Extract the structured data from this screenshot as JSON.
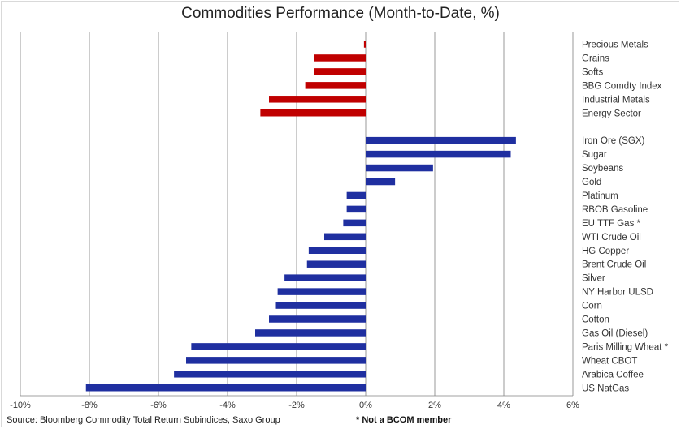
{
  "chart_data": {
    "type": "bar",
    "orientation": "horizontal",
    "title": "Commodities Performance (Month-to-Date, %)",
    "xlim": [
      -10,
      6
    ],
    "x_ticks": [
      "-10%",
      "-8%",
      "-6%",
      "-4%",
      "-2%",
      "0%",
      "2%",
      "4%",
      "6%"
    ],
    "grid": "vertical major gridlines",
    "colors": {
      "sector": "#c00000",
      "commodity": "#1f2fa0",
      "grid": "#808080"
    },
    "groups": [
      {
        "color_key": "sector",
        "categories": [
          "Precious Metals",
          "Grains",
          "Softs",
          "BBG Comdty Index",
          "Industrial Metals",
          "Energy Sector"
        ],
        "values": [
          -0.05,
          -1.5,
          -1.5,
          -1.75,
          -2.8,
          -3.05
        ]
      },
      {
        "color_key": "commodity",
        "categories": [
          "Iron Ore (SGX)",
          "Sugar",
          "Soybeans",
          "Gold",
          "Platinum",
          "RBOB Gasoline",
          "EU TTF Gas *",
          "WTI Crude Oil",
          "HG Copper",
          "Brent Crude Oil",
          "Silver",
          "NY Harbor ULSD",
          "Corn",
          "Cotton",
          "Gas Oil (Diesel)",
          "Paris Milling Wheat *",
          "Wheat CBOT",
          "Arabica Coffee",
          "US NatGas"
        ],
        "values": [
          4.35,
          4.2,
          1.95,
          0.85,
          -0.55,
          -0.55,
          -0.65,
          -1.2,
          -1.65,
          -1.7,
          -2.35,
          -2.55,
          -2.6,
          -2.8,
          -3.2,
          -5.05,
          -5.2,
          -5.55,
          -8.1
        ]
      }
    ]
  },
  "footer": {
    "source": "Source: Bloomberg Commodity Total Return Subindices, Saxo Group",
    "note": "* Not a BCOM member"
  }
}
